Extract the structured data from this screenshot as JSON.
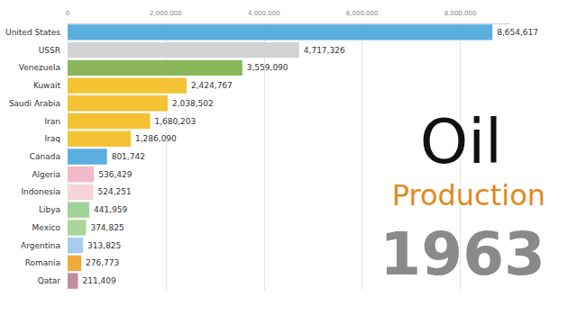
{
  "chart_data": {
    "type": "bar",
    "orientation": "horizontal",
    "title": "Oil",
    "subtitle": "Production",
    "annotations": [
      "1963"
    ],
    "categories": [
      "United States",
      "USSR",
      "Venezuela",
      "Kuwait",
      "Saudi Arabia",
      "Iran",
      "Iraq",
      "Canada",
      "Algeria",
      "Indonesia",
      "Libya",
      "Mexico",
      "Argentina",
      "Romania",
      "Qatar"
    ],
    "values": [
      8654617,
      4717326,
      3559090,
      2424767,
      2038502,
      1680203,
      1286090,
      801742,
      536429,
      524251,
      441959,
      374825,
      313825,
      276773,
      211409
    ],
    "value_labels": [
      "8,654,617",
      "4,717,326",
      "3,559,090",
      "2,424,767",
      "2,038,502",
      "1,680,203",
      "1,286,090",
      "801,742",
      "536,429",
      "524,251",
      "441,959",
      "374,825",
      "313,825",
      "276,773",
      "211,409"
    ],
    "colors": [
      "#5aafdf",
      "#d3d3d3",
      "#8ab75a",
      "#f4c232",
      "#f4c232",
      "#f4c232",
      "#f4c232",
      "#5aafdf",
      "#f3b9c9",
      "#f7d3da",
      "#9fd39a",
      "#a9d79a",
      "#a6cdef",
      "#f1a93a",
      "#c28c9c"
    ],
    "data_labels": true,
    "grid": true,
    "xlim": [
      0,
      9000000
    ],
    "xticks": [
      0,
      {
        "value": 2000000,
        "label": "2,000,000"
      },
      {
        "value": 4000000,
        "label": "4,000,000"
      },
      {
        "value": 6000000,
        "label": "6,000,000"
      },
      {
        "value": 8000000,
        "label": "8,000,000"
      }
    ]
  }
}
